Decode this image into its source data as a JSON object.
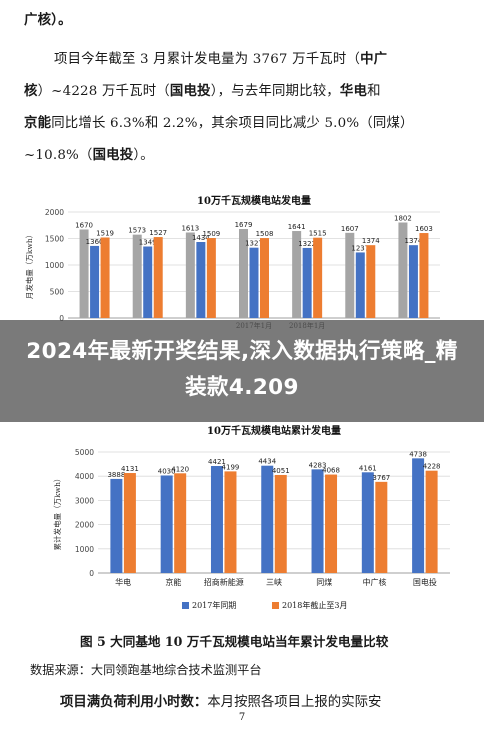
{
  "text": {
    "line0": "广核）。",
    "p1_a": "项目今年截至 3 月累计发电量为 3767 万千瓦时（",
    "p1_zg": "中广",
    "p2_zg": "核",
    "p2_a": "）~4228 万千瓦时（",
    "p2_gdt": "国电投",
    "p2_b": "），与去年同期比较，",
    "p2_hd": "华电",
    "p2_c": "和",
    "p3_jn": "京能",
    "p3_a": "同比增长 6.3%和 2.2%，其余项目同比减少 5.0%（同煤）",
    "p4_a": "~10.8%（",
    "p4_gdt": "国电投",
    "p4_b": "）。",
    "overlay": "2024年最新开奖结果,深入数据执行策略_精装款4.209",
    "caption": "图 5    大同基地 10 万千瓦规模电站当年累计发电量比较",
    "source": "数据来源：大同领跑基地综合技术监测平台",
    "last_bold": "项目满负荷利用小时数：",
    "last_rest": "本月按照各项目上报的实际安",
    "page": "7"
  },
  "colors": {
    "blue": "#4472c4",
    "orange": "#ed7d31",
    "gray": "#a5a5a5"
  },
  "chart_data": [
    {
      "type": "bar",
      "title": "10万千瓦规模电站发电量",
      "ylabel": "月发电量（万kwh）",
      "ylim": [
        0,
        2000
      ],
      "yticks": [
        "0",
        "500",
        "1000",
        "1500",
        "2000"
      ],
      "grid": true,
      "categories": [
        "",
        "",
        "",
        "",
        "",
        "",
        ""
      ],
      "xlabels_visible": [
        "2017年1月",
        "2018年1月"
      ],
      "series": [
        {
          "values": [
            1670,
            1573,
            1613,
            1679,
            1641,
            1607,
            1802
          ]
        },
        {
          "values": [
            1360,
            1349,
            1434,
            1327,
            1322,
            1237,
            1374
          ]
        },
        {
          "values": [
            1519,
            1527,
            1509,
            1508,
            1515,
            1374,
            1603
          ]
        }
      ]
    },
    {
      "type": "bar",
      "title": "10万千瓦规模电站累计发电量",
      "ylabel": "累计发电量（万kwh）",
      "ylim": [
        0,
        5000
      ],
      "yticks": [
        "0",
        "1000",
        "2000",
        "3000",
        "4000",
        "5000"
      ],
      "grid": true,
      "categories": [
        "华电",
        "京能",
        "招商新能源",
        "三峡",
        "同煤",
        "中广核",
        "国电投"
      ],
      "series": [
        {
          "name": "2017年同期",
          "values": [
            3888,
            4030,
            4421,
            4434,
            4283,
            4161,
            4738
          ]
        },
        {
          "name": "2018年截止至3月",
          "values": [
            4131,
            4120,
            4199,
            4051,
            4068,
            3767,
            4228
          ]
        }
      ],
      "legend": "bottom"
    }
  ]
}
